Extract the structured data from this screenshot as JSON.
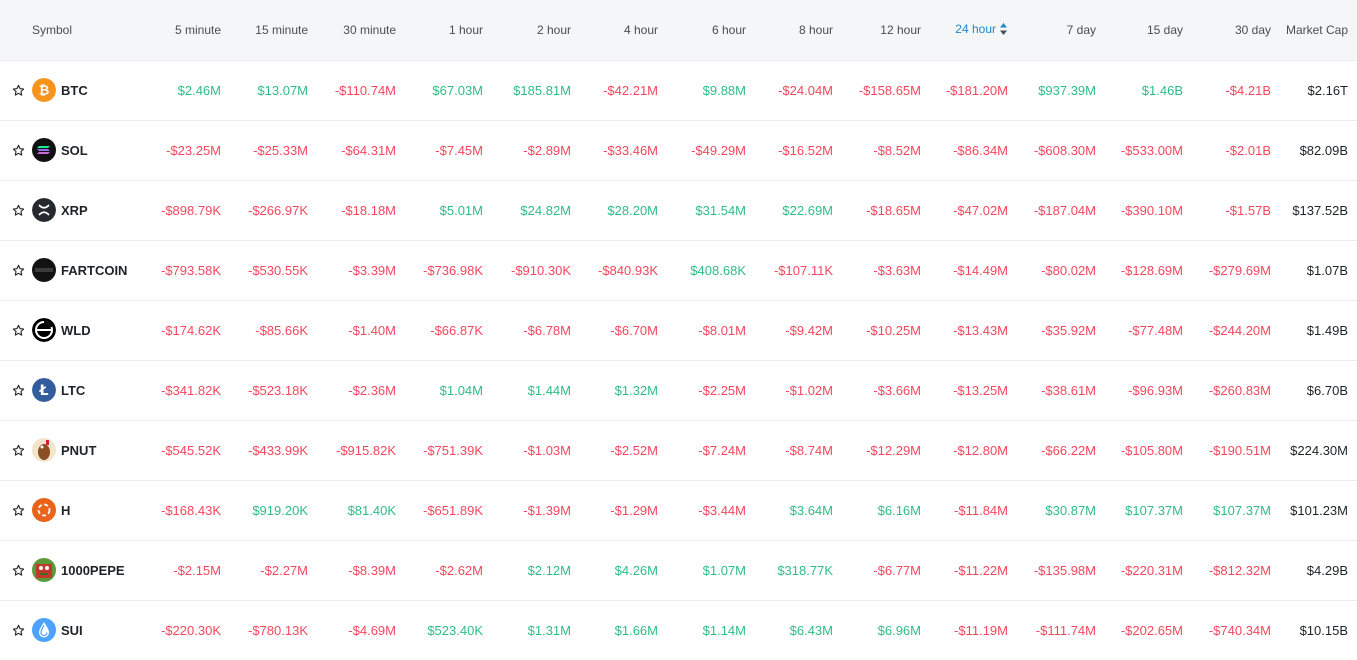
{
  "colors": {
    "positive": "#2ebd85",
    "negative": "#f6465d",
    "sorted": "#1e88c9",
    "header_bg": "#f5f6f7"
  },
  "headers": {
    "symbol": "Symbol",
    "periods": [
      "5 minute",
      "15 minute",
      "30 minute",
      "1 hour",
      "2 hour",
      "4 hour",
      "6 hour",
      "8 hour",
      "12 hour",
      "24 hour",
      "7 day",
      "15 day",
      "30 day"
    ],
    "market_cap": "Market Cap"
  },
  "sorted_column": "24 hour",
  "rows": [
    {
      "symbol": "BTC",
      "icon": "bitcoin-icon",
      "values": [
        "$2.46M",
        "$13.07M",
        "-$110.74M",
        "$67.03M",
        "$185.81M",
        "-$42.21M",
        "$9.88M",
        "-$24.04M",
        "-$158.65M",
        "-$181.20M",
        "$937.39M",
        "$1.46B",
        "-$4.21B"
      ],
      "market_cap": "$2.16T"
    },
    {
      "symbol": "SOL",
      "icon": "solana-icon",
      "values": [
        "-$23.25M",
        "-$25.33M",
        "-$64.31M",
        "-$7.45M",
        "-$2.89M",
        "-$33.46M",
        "-$49.29M",
        "-$16.52M",
        "-$8.52M",
        "-$86.34M",
        "-$608.30M",
        "-$533.00M",
        "-$2.01B"
      ],
      "market_cap": "$82.09B"
    },
    {
      "symbol": "XRP",
      "icon": "xrp-icon",
      "values": [
        "-$898.79K",
        "-$266.97K",
        "-$18.18M",
        "$5.01M",
        "$24.82M",
        "$28.20M",
        "$31.54M",
        "$22.69M",
        "-$18.65M",
        "-$47.02M",
        "-$187.04M",
        "-$390.10M",
        "-$1.57B"
      ],
      "market_cap": "$137.52B"
    },
    {
      "symbol": "FARTCOIN",
      "icon": "fartcoin-icon",
      "values": [
        "-$793.58K",
        "-$530.55K",
        "-$3.39M",
        "-$736.98K",
        "-$910.30K",
        "-$840.93K",
        "$408.68K",
        "-$107.11K",
        "-$3.63M",
        "-$14.49M",
        "-$80.02M",
        "-$128.69M",
        "-$279.69M"
      ],
      "market_cap": "$1.07B"
    },
    {
      "symbol": "WLD",
      "icon": "worldcoin-icon",
      "values": [
        "-$174.62K",
        "-$85.66K",
        "-$1.40M",
        "-$66.87K",
        "-$6.78M",
        "-$6.70M",
        "-$8.01M",
        "-$9.42M",
        "-$10.25M",
        "-$13.43M",
        "-$35.92M",
        "-$77.48M",
        "-$244.20M"
      ],
      "market_cap": "$1.49B"
    },
    {
      "symbol": "LTC",
      "icon": "litecoin-icon",
      "values": [
        "-$341.82K",
        "-$523.18K",
        "-$2.36M",
        "$1.04M",
        "$1.44M",
        "$1.32M",
        "-$2.25M",
        "-$1.02M",
        "-$3.66M",
        "-$13.25M",
        "-$38.61M",
        "-$96.93M",
        "-$260.83M"
      ],
      "market_cap": "$6.70B"
    },
    {
      "symbol": "PNUT",
      "icon": "pnut-icon",
      "values": [
        "-$545.52K",
        "-$433.99K",
        "-$915.82K",
        "-$751.39K",
        "-$1.03M",
        "-$2.52M",
        "-$7.24M",
        "-$8.74M",
        "-$12.29M",
        "-$12.80M",
        "-$66.22M",
        "-$105.80M",
        "-$190.51M"
      ],
      "market_cap": "$224.30M"
    },
    {
      "symbol": "H",
      "icon": "h-icon",
      "values": [
        "-$168.43K",
        "$919.20K",
        "$81.40K",
        "-$651.89K",
        "-$1.39M",
        "-$1.29M",
        "-$3.44M",
        "$3.64M",
        "$6.16M",
        "-$11.84M",
        "$30.87M",
        "$107.37M",
        "$107.37M"
      ],
      "market_cap": "$101.23M"
    },
    {
      "symbol": "1000PEPE",
      "icon": "pepe-icon",
      "values": [
        "-$2.15M",
        "-$2.27M",
        "-$8.39M",
        "-$2.62M",
        "$2.12M",
        "$4.26M",
        "$1.07M",
        "$318.77K",
        "-$6.77M",
        "-$11.22M",
        "-$135.98M",
        "-$220.31M",
        "-$812.32M"
      ],
      "market_cap": "$4.29B"
    },
    {
      "symbol": "SUI",
      "icon": "sui-icon",
      "values": [
        "-$220.30K",
        "-$780.13K",
        "-$4.69M",
        "$523.40K",
        "$1.31M",
        "$1.66M",
        "$1.14M",
        "$6.43M",
        "$6.96M",
        "-$11.19M",
        "-$111.74M",
        "-$202.65M",
        "-$740.34M"
      ],
      "market_cap": "$10.15B"
    }
  ]
}
